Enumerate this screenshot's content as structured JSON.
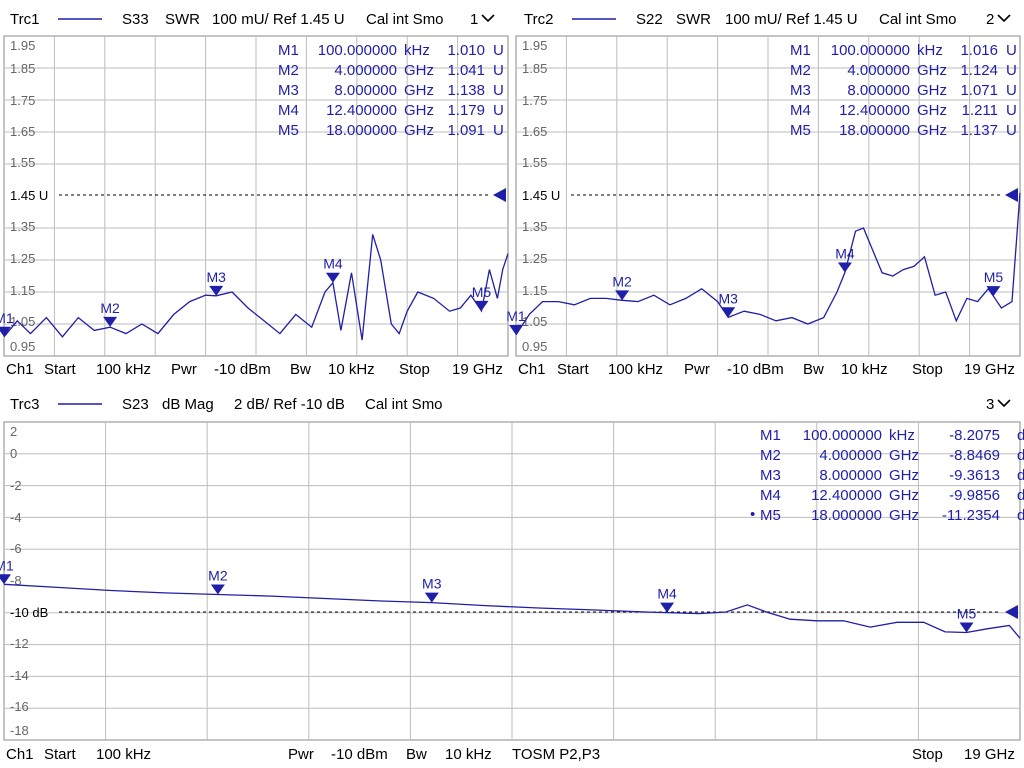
{
  "panels": [
    {
      "id": "p1",
      "header": {
        "trace": "Trc1",
        "param": "S33",
        "format": "SWR",
        "scale": "100 mU/ Ref 1.45 U",
        "cal": "Cal int Smo",
        "num": "1"
      },
      "ref_label": "1.45 U",
      "y_ticks": [
        "1.95",
        "1.85",
        "1.75",
        "1.65",
        "1.55",
        "1.35",
        "1.25",
        "1.15",
        "1.05",
        "0.95"
      ],
      "markers_table": [
        {
          "name": "M1",
          "freq": "100.000000",
          "unit": "kHz",
          "value": "1.010",
          "vunit": "U"
        },
        {
          "name": "M2",
          "freq": "4.000000",
          "unit": "GHz",
          "value": "1.041",
          "vunit": "U"
        },
        {
          "name": "M3",
          "freq": "8.000000",
          "unit": "GHz",
          "value": "1.138",
          "vunit": "U"
        },
        {
          "name": "M4",
          "freq": "12.400000",
          "unit": "GHz",
          "value": "1.179",
          "vunit": "U"
        },
        {
          "name": "M5",
          "freq": "18.000000",
          "unit": "GHz",
          "value": "1.091",
          "vunit": "U"
        }
      ],
      "footer": {
        "ch": "Ch1",
        "start_label": "Start",
        "start": "100 kHz",
        "pwr_label": "Pwr",
        "pwr": "-10 dBm",
        "bw_label": "Bw",
        "bw": "10 kHz",
        "stop_label": "Stop",
        "stop": "19 GHz"
      }
    },
    {
      "id": "p2",
      "header": {
        "trace": "Trc2",
        "param": "S22",
        "format": "SWR",
        "scale": "100 mU/ Ref 1.45 U",
        "cal": "Cal int Smo",
        "num": "2"
      },
      "ref_label": "1.45 U",
      "y_ticks": [
        "1.95",
        "1.85",
        "1.75",
        "1.65",
        "1.55",
        "1.35",
        "1.25",
        "1.15",
        "1.05",
        "0.95"
      ],
      "markers_table": [
        {
          "name": "M1",
          "freq": "100.000000",
          "unit": "kHz",
          "value": "1.016",
          "vunit": "U"
        },
        {
          "name": "M2",
          "freq": "4.000000",
          "unit": "GHz",
          "value": "1.124",
          "vunit": "U"
        },
        {
          "name": "M3",
          "freq": "8.000000",
          "unit": "GHz",
          "value": "1.071",
          "vunit": "U"
        },
        {
          "name": "M4",
          "freq": "12.400000",
          "unit": "GHz",
          "value": "1.211",
          "vunit": "U"
        },
        {
          "name": "M5",
          "freq": "18.000000",
          "unit": "GHz",
          "value": "1.137",
          "vunit": "U"
        }
      ],
      "footer": {
        "ch": "Ch1",
        "start_label": "Start",
        "start": "100 kHz",
        "pwr_label": "Pwr",
        "pwr": "-10 dBm",
        "bw_label": "Bw",
        "bw": "10 kHz",
        "stop_label": "Stop",
        "stop": "19 GHz"
      }
    },
    {
      "id": "p3",
      "header": {
        "trace": "Trc3",
        "param": "S23",
        "format": "dB Mag",
        "scale": "2 dB/ Ref -10 dB",
        "cal": "Cal int Smo",
        "num": "3"
      },
      "ref_label": "-10 dB",
      "y_ticks": [
        "2",
        "0",
        "-2",
        "-4",
        "-6",
        "-8",
        "-12",
        "-14",
        "-16",
        "-18"
      ],
      "markers_table": [
        {
          "name": "M1",
          "freq": "100.000000",
          "unit": "kHz",
          "value": "-8.2075",
          "vunit": "dB"
        },
        {
          "name": "M2",
          "freq": "4.000000",
          "unit": "GHz",
          "value": "-8.8469",
          "vunit": "dB"
        },
        {
          "name": "M3",
          "freq": "8.000000",
          "unit": "GHz",
          "value": "-9.3613",
          "vunit": "dB"
        },
        {
          "name": "M4",
          "freq": "12.400000",
          "unit": "GHz",
          "value": "-9.9856",
          "vunit": "dB"
        },
        {
          "name": "M5",
          "freq": "18.000000",
          "unit": "GHz",
          "value": "-11.2354",
          "vunit": "dB",
          "active": true
        }
      ],
      "footer": {
        "ch": "Ch1",
        "start_label": "Start",
        "start": "100 kHz",
        "pwr_label": "Pwr",
        "pwr": "-10 dBm",
        "bw_label": "Bw",
        "bw": "10 kHz",
        "extra": "TOSM P2,P3",
        "stop_label": "Stop",
        "stop": "19 GHz"
      }
    }
  ],
  "chart_data": [
    {
      "type": "line",
      "title": "Trc1 S33 SWR",
      "xlabel": "",
      "ylabel": "",
      "x_unit": "GHz",
      "xlim": [
        0.0001,
        19
      ],
      "ylim": [
        0.95,
        1.95
      ],
      "reference": 1.45,
      "grid": true,
      "series": [
        {
          "name": "Trc1",
          "x": [
            0.0001,
            0.5,
            1,
            1.6,
            2.2,
            2.8,
            3.4,
            4,
            4.6,
            5.2,
            5.8,
            6.4,
            7,
            7.6,
            8,
            8.6,
            9.2,
            9.8,
            10.4,
            11,
            11.6,
            12.1,
            12.4,
            12.7,
            13.1,
            13.5,
            13.9,
            14.2,
            14.6,
            14.9,
            15.2,
            15.6,
            16.2,
            16.8,
            17.2,
            17.6,
            18,
            18.3,
            18.6,
            18.8,
            19
          ],
          "y": [
            1.01,
            1.06,
            1.02,
            1.07,
            1.01,
            1.07,
            1.03,
            1.04,
            1.02,
            1.05,
            1.02,
            1.08,
            1.12,
            1.14,
            1.138,
            1.15,
            1.1,
            1.06,
            1.02,
            1.08,
            1.04,
            1.15,
            1.179,
            1.03,
            1.21,
            1.0,
            1.33,
            1.25,
            1.05,
            1.02,
            1.09,
            1.15,
            1.13,
            1.09,
            1.1,
            1.14,
            1.091,
            1.22,
            1.13,
            1.22,
            1.27
          ]
        }
      ],
      "markers": [
        {
          "label": "M1",
          "x": 0.0001,
          "y": 1.01
        },
        {
          "label": "M2",
          "x": 4,
          "y": 1.041
        },
        {
          "label": "M3",
          "x": 8,
          "y": 1.138
        },
        {
          "label": "M4",
          "x": 12.4,
          "y": 1.179
        },
        {
          "label": "M5",
          "x": 18,
          "y": 1.091
        }
      ]
    },
    {
      "type": "line",
      "title": "Trc2 S22 SWR",
      "xlabel": "",
      "ylabel": "",
      "x_unit": "GHz",
      "xlim": [
        0.0001,
        19
      ],
      "ylim": [
        0.95,
        1.95
      ],
      "reference": 1.45,
      "grid": true,
      "series": [
        {
          "name": "Trc2",
          "x": [
            0.0001,
            0.5,
            1,
            1.6,
            2.2,
            2.8,
            3.4,
            4,
            4.6,
            5.2,
            5.8,
            6.4,
            7,
            7.6,
            8,
            8.6,
            9.2,
            9.8,
            10.4,
            11,
            11.6,
            12.1,
            12.4,
            12.8,
            13.1,
            13.5,
            13.8,
            14.2,
            14.6,
            15,
            15.4,
            15.8,
            16.2,
            16.6,
            17,
            17.4,
            17.8,
            18,
            18.3,
            18.7,
            19
          ],
          "y": [
            1.016,
            1.08,
            1.12,
            1.12,
            1.11,
            1.13,
            1.13,
            1.124,
            1.12,
            1.14,
            1.11,
            1.13,
            1.16,
            1.12,
            1.071,
            1.09,
            1.08,
            1.06,
            1.07,
            1.05,
            1.07,
            1.15,
            1.211,
            1.34,
            1.35,
            1.27,
            1.21,
            1.2,
            1.22,
            1.23,
            1.26,
            1.14,
            1.15,
            1.06,
            1.13,
            1.12,
            1.16,
            1.137,
            1.1,
            1.12,
            1.46
          ]
        }
      ],
      "markers": [
        {
          "label": "M1",
          "x": 0.0001,
          "y": 1.016
        },
        {
          "label": "M2",
          "x": 4,
          "y": 1.124
        },
        {
          "label": "M3",
          "x": 8,
          "y": 1.071
        },
        {
          "label": "M4",
          "x": 12.4,
          "y": 1.211
        },
        {
          "label": "M5",
          "x": 18,
          "y": 1.137
        }
      ]
    },
    {
      "type": "line",
      "title": "Trc3 S23 dB Mag",
      "xlabel": "",
      "ylabel": "",
      "x_unit": "GHz",
      "xlim": [
        0.0001,
        19
      ],
      "ylim": [
        -18,
        2
      ],
      "reference": -10,
      "grid": true,
      "series": [
        {
          "name": "Trc3",
          "x": [
            0.0001,
            1,
            2,
            3,
            4,
            5,
            6,
            7,
            8,
            9,
            10,
            11,
            12,
            12.4,
            13,
            13.5,
            13.9,
            14.3,
            14.7,
            15.2,
            15.7,
            16.2,
            16.7,
            17.2,
            17.6,
            18,
            18.4,
            18.8,
            19
          ],
          "y": [
            -8.21,
            -8.4,
            -8.6,
            -8.75,
            -8.85,
            -8.95,
            -9.1,
            -9.25,
            -9.36,
            -9.55,
            -9.7,
            -9.82,
            -9.95,
            -9.99,
            -10.05,
            -9.95,
            -9.5,
            -10.0,
            -10.4,
            -10.5,
            -10.5,
            -10.9,
            -10.6,
            -10.6,
            -11.2,
            -11.24,
            -11.0,
            -10.8,
            -11.6
          ]
        }
      ],
      "markers": [
        {
          "label": "M1",
          "x": 0.0001,
          "y": -8.2075
        },
        {
          "label": "M2",
          "x": 4,
          "y": -8.8469
        },
        {
          "label": "M3",
          "x": 8,
          "y": -9.3613
        },
        {
          "label": "M4",
          "x": 12.4,
          "y": -9.9856
        },
        {
          "label": "M5",
          "x": 18,
          "y": -11.2354
        }
      ]
    }
  ],
  "colors": {
    "trace": "#1f1fa8",
    "grid": "#bdbdbd",
    "frame": "#888888",
    "ref": "#000000"
  }
}
